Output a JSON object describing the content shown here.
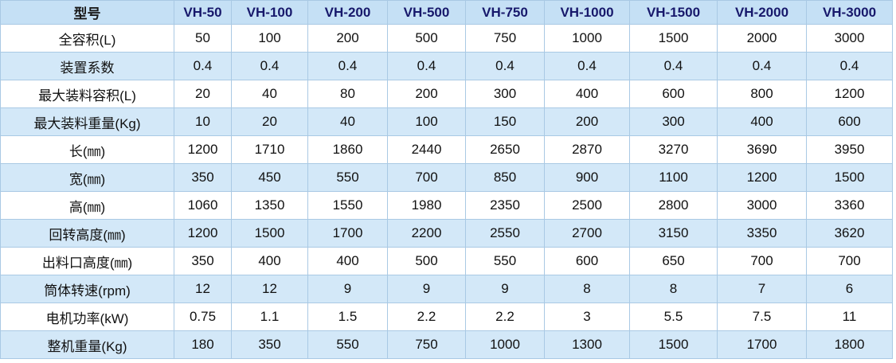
{
  "table": {
    "header": [
      "型号",
      "VH-50",
      "VH-100",
      "VH-200",
      "VH-500",
      "VH-750",
      "VH-1000",
      "VH-1500",
      "VH-2000",
      "VH-3000"
    ],
    "rows": [
      [
        "全容积(L)",
        "50",
        "100",
        "200",
        "500",
        "750",
        "1000",
        "1500",
        "2000",
        "3000"
      ],
      [
        "装置系数",
        "0.4",
        "0.4",
        "0.4",
        "0.4",
        "0.4",
        "0.4",
        "0.4",
        "0.4",
        "0.4"
      ],
      [
        "最大装料容积(L)",
        "20",
        "40",
        "80",
        "200",
        "300",
        "400",
        "600",
        "800",
        "1200"
      ],
      [
        "最大装料重量(Kg)",
        "10",
        "20",
        "40",
        "100",
        "150",
        "200",
        "300",
        "400",
        "600"
      ],
      [
        "长(㎜)",
        "1200",
        "1710",
        "1860",
        "2440",
        "2650",
        "2870",
        "3270",
        "3690",
        "3950"
      ],
      [
        "宽(㎜)",
        "350",
        "450",
        "550",
        "700",
        "850",
        "900",
        "1100",
        "1200",
        "1500"
      ],
      [
        "高(㎜)",
        "1060",
        "1350",
        "1550",
        "1980",
        "2350",
        "2500",
        "2800",
        "3000",
        "3360"
      ],
      [
        "回转高度(㎜)",
        "1200",
        "1500",
        "1700",
        "2200",
        "2550",
        "2700",
        "3150",
        "3350",
        "3620"
      ],
      [
        "出料口高度(㎜)",
        "350",
        "400",
        "400",
        "500",
        "550",
        "600",
        "650",
        "700",
        "700"
      ],
      [
        "筒体转速(rpm)",
        "12",
        "12",
        "9",
        "9",
        "9",
        "8",
        "8",
        "7",
        "6"
      ],
      [
        "电机功率(kW)",
        "0.75",
        "1.1",
        "1.5",
        "2.2",
        "2.2",
        "3",
        "5.5",
        "7.5",
        "11"
      ],
      [
        "整机重量(Kg)",
        "180",
        "350",
        "550",
        "750",
        "1000",
        "1300",
        "1500",
        "1700",
        "1800"
      ]
    ]
  }
}
